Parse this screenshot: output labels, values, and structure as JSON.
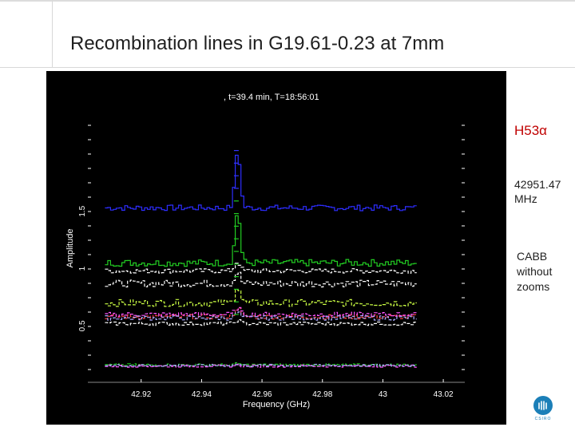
{
  "slide": {
    "title": "Recombination lines in G19.61-0.23 at 7mm",
    "line_name": "H53α",
    "freq_lines": [
      "42951.47",
      "MHz"
    ],
    "note_lines": [
      "CABB",
      "without",
      "zooms"
    ],
    "logo_text": "CSIRO",
    "logo_icon": "csiro-logo-icon"
  },
  "chart_data": {
    "type": "line",
    "header": ", t=39.4 min, T=18:56:01",
    "xlabel": "Frequency (GHz)",
    "ylabel": "Amplitude",
    "x_ticks": [
      "42.92",
      "42.94",
      "42.96",
      "42.98",
      "43",
      "43.02"
    ],
    "x_tick_values": [
      42.92,
      42.94,
      42.96,
      42.98,
      43.0,
      43.02
    ],
    "y_ticks": [
      "1",
      "1.5",
      "0.5"
    ],
    "y_tick_values": [
      1.0,
      1.5,
      0.5
    ],
    "xlim": [
      42.905,
      43.025
    ],
    "ylim": [
      0.05,
      2.25
    ],
    "line_center": 42.9515,
    "colors": [
      "#2d2dff",
      "#22cc22",
      "#ffffff",
      "#ffffff",
      "#ccff44",
      "#ff4444",
      "#ff55ff",
      "#aaaaff",
      "#ffffff",
      "#22cc22",
      "#ff55ff",
      "#aaaaff"
    ],
    "series": [
      {
        "base": 1.53,
        "amp": 0.5,
        "noise": 0.025
      },
      {
        "base": 1.05,
        "amp": 0.45,
        "noise": 0.03
      },
      {
        "base": 0.98,
        "amp": 0.08,
        "noise": 0.02
      },
      {
        "base": 0.87,
        "amp": 0.1,
        "noise": 0.03
      },
      {
        "base": 0.7,
        "amp": 0.15,
        "noise": 0.03
      },
      {
        "base": 0.58,
        "amp": 0.08,
        "noise": 0.02
      },
      {
        "base": 0.6,
        "amp": 0.06,
        "noise": 0.02
      },
      {
        "base": 0.57,
        "amp": 0.05,
        "noise": 0.02
      },
      {
        "base": 0.52,
        "amp": 0.03,
        "noise": 0.015
      },
      {
        "base": 0.16,
        "amp": 0.01,
        "noise": 0.01
      },
      {
        "base": 0.15,
        "amp": 0.01,
        "noise": 0.01
      },
      {
        "base": 0.155,
        "amp": 0.01,
        "noise": 0.01
      }
    ]
  }
}
